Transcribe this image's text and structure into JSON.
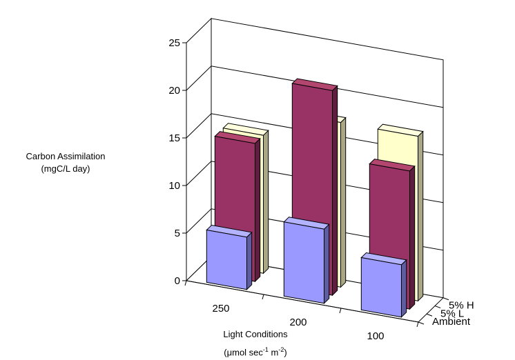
{
  "chart_data": {
    "type": "bar",
    "title": "",
    "ylabel": {
      "line1": "Carbon Assimilation",
      "line2": "(mgC/L day)"
    },
    "xlabel": {
      "line1": "Light Conditions",
      "line2_prefix": "(",
      "mu": "μ",
      "line2_mid": "mol sec",
      "exp1": "-1",
      "line2_mid2": " m",
      "exp2": "-2",
      "line2_suffix": ")"
    },
    "categories": [
      "250",
      "200",
      "100"
    ],
    "series_labels": [
      "Ambient",
      "5% L",
      "5% H"
    ],
    "series": [
      {
        "values": [
          5.5,
          7.8,
          5.5
        ],
        "colors": {
          "front": "#9999ff",
          "side": "#5d5da0",
          "top": "#b3b3ff"
        }
      },
      {
        "values": [
          14.5,
          21.5,
          14.5
        ],
        "colors": {
          "front": "#993366",
          "side": "#5e1f3e",
          "top": "#b3466f"
        }
      },
      {
        "values": [
          14.5,
          17.3,
          17.3
        ],
        "colors": {
          "front": "#ffffcc",
          "side": "#a8a886",
          "top": "#ffffe0"
        }
      }
    ],
    "ylim": [
      0,
      25
    ],
    "yticks": [
      "0",
      "5",
      "10",
      "15",
      "20",
      "25"
    ],
    "grid": true,
    "legend": "none"
  }
}
